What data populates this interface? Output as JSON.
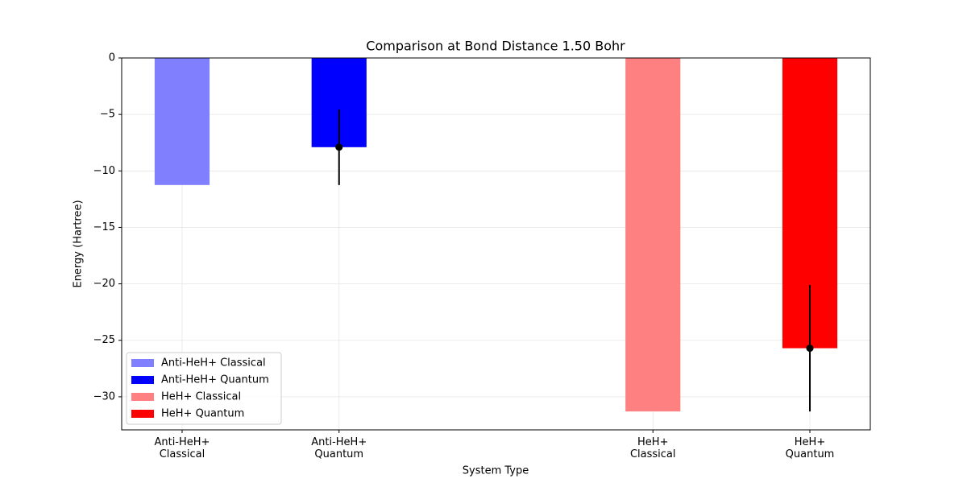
{
  "chart_data": {
    "type": "bar",
    "title": "Comparison at Bond Distance 1.50 Bohr",
    "xlabel": "System Type",
    "ylabel": "Energy (Hartree)",
    "categories": [
      "Anti-HeH+\nClassical",
      "Anti-HeH+\nQuantum",
      "HeH+\nClassical",
      "HeH+\nQuantum"
    ],
    "x": [
      0,
      1,
      3,
      4
    ],
    "xlim": [
      -0.385,
      4.385
    ],
    "ylim": [
      -32.93,
      0
    ],
    "yticks": [
      {
        "value": 0,
        "label": "0"
      },
      {
        "value": -5,
        "label": "−5"
      },
      {
        "value": -10,
        "label": "−10"
      },
      {
        "value": -15,
        "label": "−15"
      },
      {
        "value": -20,
        "label": "−20"
      },
      {
        "value": -25,
        "label": "−25"
      },
      {
        "value": -30,
        "label": "−30"
      }
    ],
    "grid": true,
    "legend": "lower left",
    "series": [
      {
        "name": "Anti-HeH+ Classical",
        "color": "#8080ff",
        "values": [
          -11.25,
          null,
          null,
          null
        ],
        "errors": [
          null,
          null,
          null,
          null
        ]
      },
      {
        "name": "Anti-HeH+ Quantum",
        "color": "#0000ff",
        "values": [
          null,
          -7.9,
          null,
          null
        ],
        "errors": [
          null,
          3.35,
          null,
          null
        ]
      },
      {
        "name": "HeH+ Classical",
        "color": "#ff8080",
        "values": [
          null,
          null,
          -31.3,
          null
        ],
        "errors": [
          null,
          null,
          null,
          null
        ]
      },
      {
        "name": "HeH+ Quantum",
        "color": "#ff0000",
        "values": [
          null,
          null,
          null,
          -25.7
        ],
        "errors": [
          null,
          null,
          null,
          5.6
        ]
      }
    ]
  }
}
